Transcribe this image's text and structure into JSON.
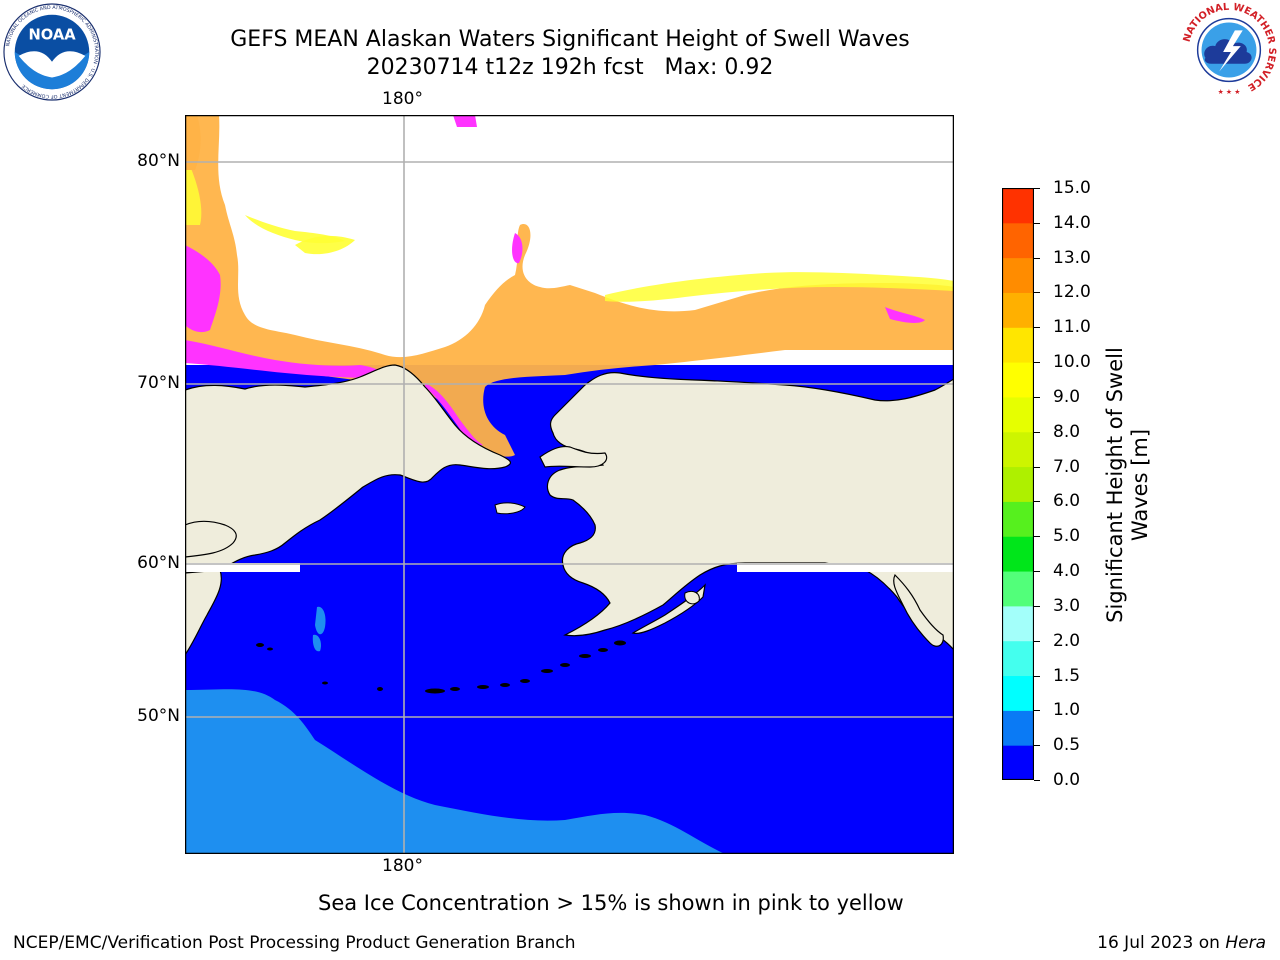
{
  "header": {
    "title_line1": "GEFS MEAN Alaskan Waters Significant Height of Swell Waves",
    "title_line2": "20230714 t12z 192h fcst   Max: 0.92"
  },
  "logos": {
    "left": {
      "icon": "noaa-logo",
      "text": "NOAA",
      "ring_text": "NATIONAL OCEANIC AND ATMOSPHERIC ADMINISTRATION · U.S. DEPARTMENT OF COMMERCE"
    },
    "right": {
      "icon": "national-weather-service-logo",
      "ring_text": "NATIONAL WEATHER SERVICE"
    }
  },
  "map": {
    "region": "Alaskan Waters",
    "latitude_labels": [
      "80°N",
      "70°N",
      "60°N",
      "50°N"
    ],
    "longitude_label_top": "180°",
    "longitude_label_bottom": "180°",
    "colors": {
      "land": "#efeddc",
      "ocean_low": "#0000ff",
      "ocean_mid": "#1e8ff0",
      "ice_pink": "#ff33ff",
      "ice_orange": "#ffb347",
      "ice_yellow": "#ffff33",
      "grid": "#b0b0b0"
    }
  },
  "colorbar": {
    "title": "Significant Height of Swell Waves [m]",
    "tick_labels": [
      "15.0",
      "14.0",
      "13.0",
      "12.0",
      "11.0",
      "10.0",
      "9.0",
      "8.0",
      "7.0",
      "6.0",
      "5.0",
      "4.0",
      "3.0",
      "2.0",
      "1.5",
      "1.0",
      "0.5",
      "0.0"
    ],
    "bin_colors": [
      "#0000ff",
      "#0a7af5",
      "#00ffff",
      "#44ffee",
      "#a3fffa",
      "#52ff7a",
      "#00e61a",
      "#56f01e",
      "#aef000",
      "#cdf500",
      "#e6ff00",
      "#ffff00",
      "#ffe600",
      "#ffb000",
      "#ff8c00",
      "#ff6400",
      "#ff3200",
      "#ff0000"
    ]
  },
  "annotation": "Sea Ice Concentration > 15% is shown in pink to yellow",
  "footer": {
    "left": "NCEP/EMC/Verification Post Processing Product Generation Branch",
    "right_date": "16 Jul 2023 on ",
    "right_host": "Hera"
  }
}
